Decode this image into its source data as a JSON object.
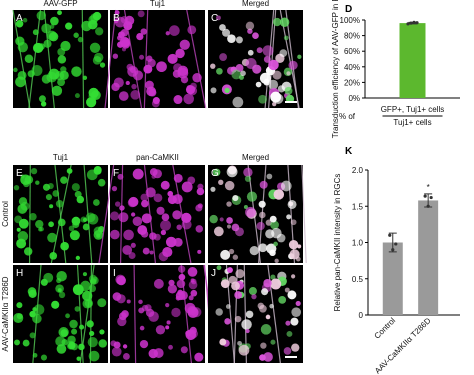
{
  "top_row": {
    "titles": [
      "AAV-GFP",
      "Tuj1",
      "Merged"
    ],
    "letters": [
      "A",
      "B",
      "C"
    ]
  },
  "bottom": {
    "titles": [
      "Tuj1",
      "pan-CaMKII",
      "Merged"
    ],
    "rows": [
      {
        "label": "Control",
        "letters": [
          "E",
          "F",
          "G"
        ]
      },
      {
        "label": "AAV-CaMKIIα T286D",
        "letters": [
          "H",
          "I",
          "J"
        ]
      }
    ]
  },
  "chart_data": [
    {
      "type": "bar",
      "panel": "D",
      "ylabel": "Transduction efficiency of AAV-GFP in RGCs",
      "categories": [
        "GFP+, Tuj1+ cells"
      ],
      "denominator": "Tuj1+ cells",
      "prefix": "% of",
      "values": [
        96
      ],
      "errors": [
        1
      ],
      "points": [
        [
          95,
          96,
          97,
          96.5
        ]
      ],
      "color": "#5cb82e",
      "ylim": [
        0,
        100
      ],
      "yticks": [
        {
          "value": 0,
          "label": "0%"
        },
        {
          "value": 20,
          "label": "20%"
        },
        {
          "value": 40,
          "label": "40%"
        },
        {
          "value": 60,
          "label": "60%"
        },
        {
          "value": 80,
          "label": "80%"
        },
        {
          "value": 100,
          "label": "100%"
        }
      ]
    },
    {
      "type": "bar",
      "panel": "K",
      "ylabel": "Relative pan-CaMKII intensity in RGCs",
      "categories": [
        "Control",
        "AAV-CaMKIIα T286D"
      ],
      "values": [
        1.0,
        1.58
      ],
      "errors": [
        0.13,
        0.09
      ],
      "points": [
        [
          1.1,
          0.9,
          0.98
        ],
        [
          1.64,
          1.5,
          1.62
        ]
      ],
      "color": "#9a9a9a",
      "annotation": "*",
      "ylim": [
        0,
        2
      ],
      "yticks": [
        0,
        0.5,
        {
          "value": 1,
          "label": "1.0"
        },
        1.5,
        {
          "value": 2,
          "label": "2.0"
        }
      ]
    }
  ]
}
